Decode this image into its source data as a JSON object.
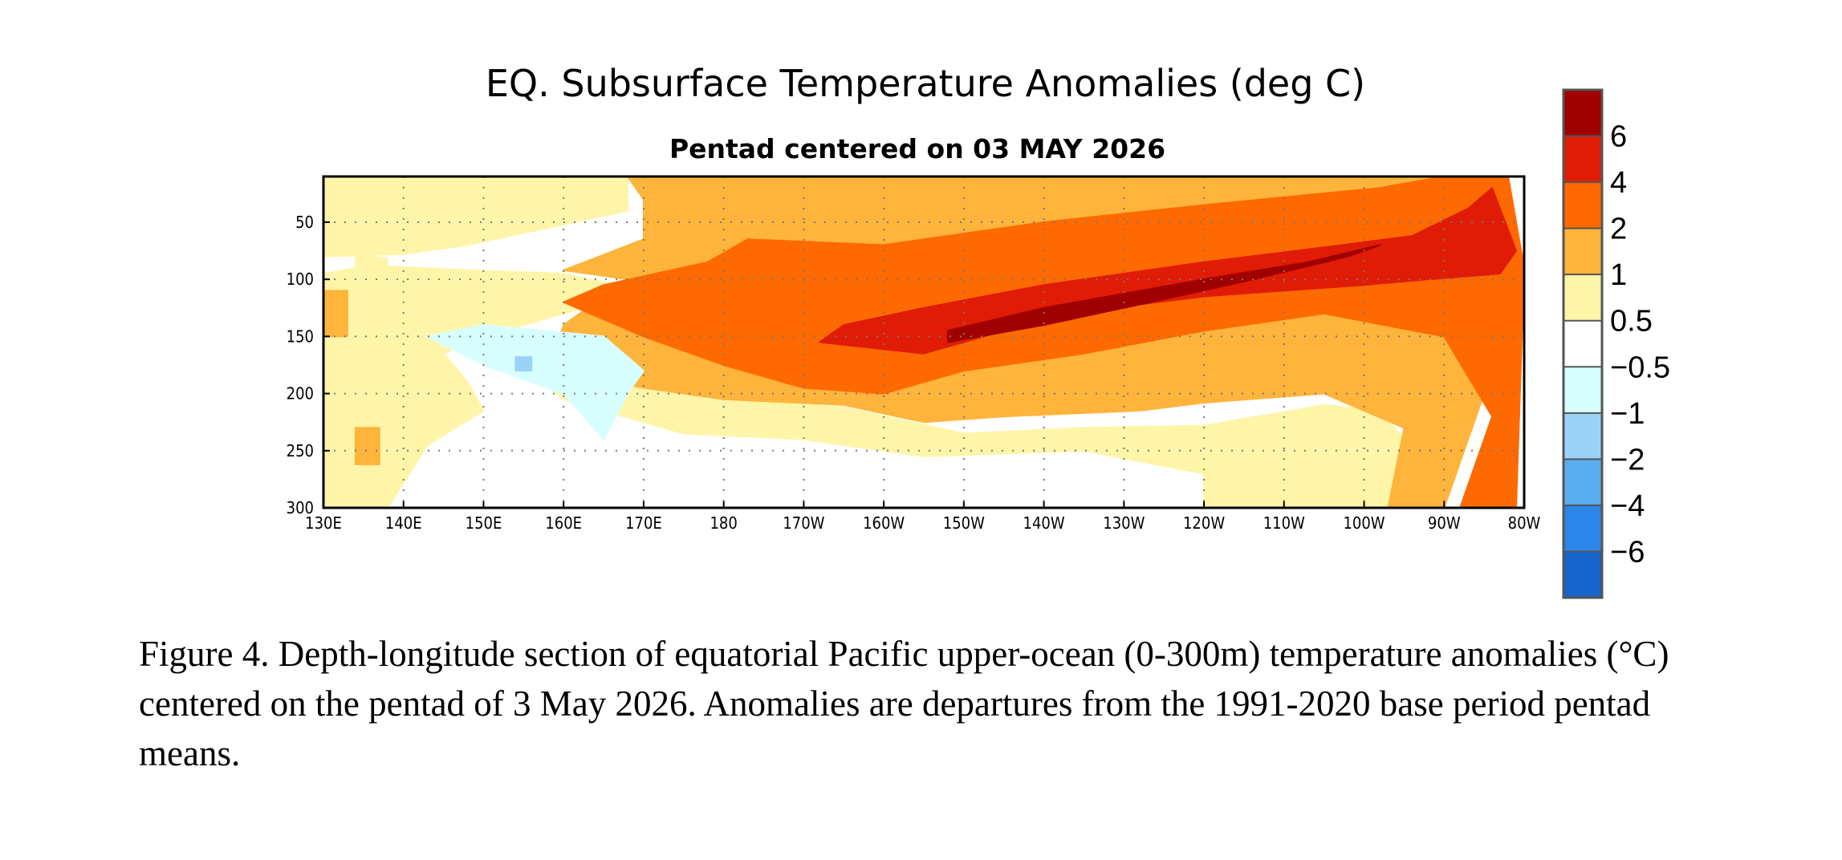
{
  "chart_data": {
    "type": "heatmap",
    "title": "EQ. Subsurface Temperature Anomalies (deg C)",
    "subtitle": "Pentad centered on 03 MAY 2026",
    "xlabel": "",
    "ylabel": "",
    "x_ticks": [
      "130E",
      "140E",
      "150E",
      "160E",
      "170E",
      "180",
      "170W",
      "160W",
      "150W",
      "140W",
      "130W",
      "120W",
      "110W",
      "100W",
      "90W",
      "80W"
    ],
    "x_tick_lon": [
      130,
      140,
      150,
      160,
      170,
      180,
      190,
      200,
      210,
      220,
      230,
      240,
      250,
      260,
      270,
      280
    ],
    "xlim_lon": [
      130,
      280
    ],
    "y_ticks": [
      50,
      100,
      150,
      200,
      250,
      300
    ],
    "ylim_depth": [
      10,
      300
    ],
    "grid": true,
    "legend": "colorbar-right",
    "colorbar": {
      "labels": [
        "6",
        "4",
        "2",
        "1",
        "0.5",
        "−0.5",
        "−1",
        "−2",
        "−4",
        "−6"
      ],
      "colors": [
        "#a10000",
        "#e01c06",
        "#ff6a00",
        "#ffb43c",
        "#fff5a8",
        "#ffffff",
        "#d8ffff",
        "#9bd3f7",
        "#5aaef0",
        "#2c85e8",
        "#1564cc"
      ]
    },
    "anomaly_regions": [
      {
        "level": 1,
        "color": "#fff5a8",
        "label": "0.5 to 1"
      },
      {
        "level": 2,
        "color": "#ffb43c",
        "label": "1 to 2"
      },
      {
        "level": 3,
        "color": "#ff6a00",
        "label": "2 to 4"
      },
      {
        "level": 4,
        "color": "#e01c06",
        "label": "4 to 6"
      },
      {
        "level": 5,
        "color": "#a10000",
        "label": "above 6"
      },
      {
        "level": -1,
        "color": "#d8ffff",
        "label": "-1 to -0.5"
      },
      {
        "level": -2,
        "color": "#9bd3f7",
        "label": "-2 to -1"
      }
    ]
  },
  "caption": {
    "text": "Figure 4. Depth-longitude section of equatorial Pacific upper-ocean (0-300m) temperature anomalies (°C) centered on the pentad of 3 May 2026. Anomalies are departures from the 1991-2020 base period pentad means."
  }
}
